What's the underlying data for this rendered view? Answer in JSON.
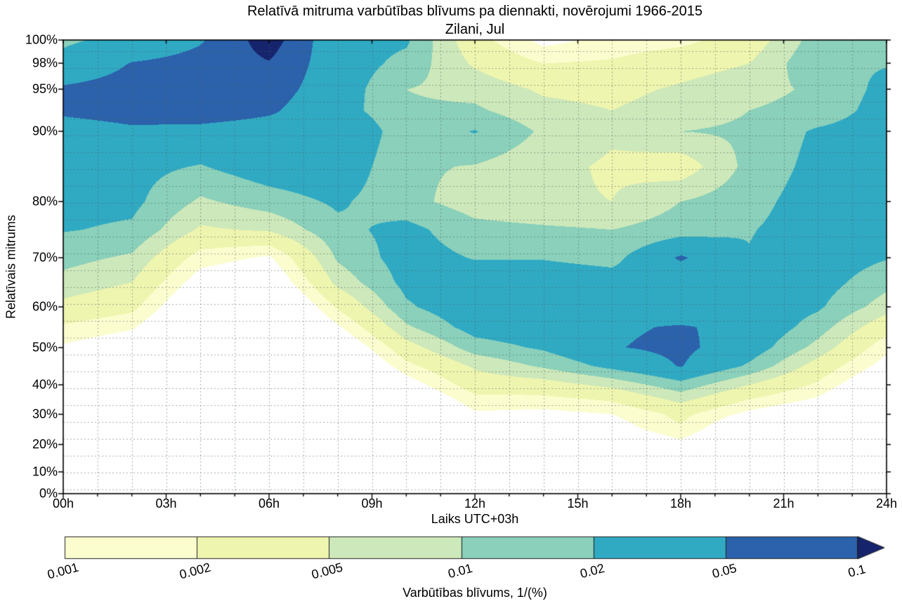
{
  "chart": {
    "title": "Relatīvā mitruma varbūtības blīvums pa diennakti, novērojumi 1966-2015",
    "subtitle": "Zilani, Jul"
  },
  "axes": {
    "x": {
      "label": "Laiks UTC+03h",
      "ticks": [
        {
          "label": "00h",
          "hour": 0
        },
        {
          "label": "03h",
          "hour": 3
        },
        {
          "label": "06h",
          "hour": 6
        },
        {
          "label": "09h",
          "hour": 9
        },
        {
          "label": "12h",
          "hour": 12
        },
        {
          "label": "15h",
          "hour": 15
        },
        {
          "label": "18h",
          "hour": 18
        },
        {
          "label": "21h",
          "hour": 21
        },
        {
          "label": "24h",
          "hour": 24
        }
      ]
    },
    "y": {
      "label": "Relatīvais mitrums",
      "ticks": [
        {
          "label": "100%",
          "value": 100,
          "f": 0.0
        },
        {
          "label": "98%",
          "value": 98,
          "f": 0.0511
        },
        {
          "label": "95%",
          "value": 95,
          "f": 0.1084
        },
        {
          "label": "90%",
          "value": 90,
          "f": 0.2012
        },
        {
          "label": "80%",
          "value": 80,
          "f": 0.356
        },
        {
          "label": "70%",
          "value": 70,
          "f": 0.4799
        },
        {
          "label": "60%",
          "value": 60,
          "f": 0.5882
        },
        {
          "label": "50%",
          "value": 50,
          "f": 0.678
        },
        {
          "label": "40%",
          "value": 40,
          "f": 0.7601
        },
        {
          "label": "30%",
          "value": 30,
          "f": 0.8251
        },
        {
          "label": "20%",
          "value": 20,
          "f": 0.8916
        },
        {
          "label": "10%",
          "value": 10,
          "f": 0.952
        },
        {
          "label": "0%",
          "value": 0,
          "f": 1.0
        }
      ]
    }
  },
  "colorbar": {
    "label": "Varbūtības blīvums, 1/(%)",
    "tick_labels": [
      "0.001",
      "0.002",
      "0.005",
      "0.01",
      "0.02",
      "0.05",
      "0.1"
    ],
    "band_colors": [
      "#fcfdcf",
      "#eef5ae",
      "#cde8ba",
      "#8ad0ba",
      "#30aac3",
      "#2b62ab"
    ],
    "arrow_color": "#16246d"
  },
  "chart_data": {
    "type": "heatmap",
    "subtype": "filled-contour",
    "title": "Relatīvā mitruma varbūtības blīvums pa diennakti, novērojumi 1966-2015",
    "subtitle": "Zilani, Jul",
    "xlabel": "Laiks UTC+03h",
    "ylabel": "Relatīvais mitrums",
    "xlim": [
      0,
      24
    ],
    "ylim": [
      0,
      100
    ],
    "grid": true,
    "contour_levels": [
      0.001,
      0.002,
      0.005,
      0.01,
      0.02,
      0.05,
      0.1
    ],
    "band_colors": [
      "#ffffff",
      "#fcfdcf",
      "#eef5ae",
      "#cde8ba",
      "#8ad0ba",
      "#30aac3",
      "#2b62ab",
      "#16246d"
    ],
    "hours": [
      0,
      2,
      4,
      6,
      8,
      10,
      12,
      14,
      16,
      18,
      20,
      22,
      24
    ],
    "humidity_levels": [
      100,
      98,
      95,
      92.5,
      90,
      85,
      80,
      75,
      70,
      65,
      60,
      55,
      50,
      45,
      40,
      35,
      30,
      25,
      20,
      10,
      0
    ],
    "log10_density": [
      [
        -1.75,
        -1.6,
        -1.33,
        -0.85,
        -1.55,
        -1.65,
        -2.55,
        -3.1,
        -2.9,
        -2.8,
        -2.5,
        -1.85,
        -1.78
      ],
      [
        -1.6,
        -1.28,
        -1.18,
        -1.02,
        -1.5,
        -1.8,
        -2.35,
        -2.7,
        -2.65,
        -2.45,
        -2.3,
        -1.75,
        -1.72
      ],
      [
        -1.24,
        -1.15,
        -1.12,
        -1.15,
        -1.5,
        -2.0,
        -2.1,
        -2.35,
        -2.4,
        -2.25,
        -2.1,
        -1.95,
        -1.6
      ],
      [
        -1.24,
        -1.18,
        -1.12,
        -1.25,
        -1.55,
        -1.95,
        -1.95,
        -2.2,
        -2.3,
        -2.15,
        -2.0,
        -1.9,
        -1.55
      ],
      [
        -1.45,
        -1.35,
        -1.4,
        -1.45,
        -1.32,
        -1.9,
        -1.68,
        -2.05,
        -2.25,
        -2.0,
        -1.95,
        -1.65,
        -1.52
      ],
      [
        -1.55,
        -1.6,
        -1.72,
        -1.5,
        -1.45,
        -1.95,
        -2.02,
        -2.2,
        -2.35,
        -2.5,
        -1.9,
        -1.6,
        -1.5
      ],
      [
        -1.6,
        -1.62,
        -2.05,
        -1.85,
        -1.65,
        -1.9,
        -2.15,
        -2.25,
        -2.3,
        -2.0,
        -1.8,
        -1.55,
        -1.52
      ],
      [
        -1.68,
        -1.75,
        -2.35,
        -2.25,
        -1.78,
        -1.6,
        -1.9,
        -1.95,
        -2.0,
        -1.85,
        -1.72,
        -1.55,
        -1.55
      ],
      [
        -1.9,
        -2.05,
        -2.85,
        -3.05,
        -1.95,
        -1.55,
        -1.72,
        -1.72,
        -1.8,
        -1.25,
        -1.68,
        -1.5,
        -1.68
      ],
      [
        -2.1,
        -2.3,
        -3.2,
        -3.4,
        -2.2,
        -1.6,
        -1.5,
        -1.5,
        -1.55,
        -1.6,
        -1.5,
        -1.55,
        -1.9
      ],
      [
        -2.4,
        -2.6,
        -3.55,
        -3.8,
        -2.65,
        -1.75,
        -1.42,
        -1.38,
        -1.42,
        -1.55,
        -1.45,
        -1.65,
        -2.15
      ],
      [
        -2.75,
        -2.95,
        -3.8,
        -4.05,
        -3.05,
        -2.05,
        -1.55,
        -1.45,
        -1.35,
        -1.27,
        -1.4,
        -1.85,
        -2.55
      ],
      [
        -3.05,
        -3.3,
        -4.0,
        -4.25,
        -3.45,
        -2.45,
        -1.85,
        -1.65,
        -1.32,
        -1.22,
        -1.5,
        -2.1,
        -2.9
      ],
      [
        -3.4,
        -3.6,
        -4.2,
        -4.45,
        -3.75,
        -2.8,
        -2.25,
        -1.95,
        -1.6,
        -1.28,
        -1.75,
        -2.45,
        -3.15
      ],
      [
        -3.7,
        -3.85,
        -4.4,
        -4.6,
        -4.0,
        -3.2,
        -2.5,
        -2.45,
        -2.2,
        -1.8,
        -2.3,
        -2.75,
        -3.5
      ],
      [
        -3.9,
        -4.05,
        -4.55,
        -4.75,
        -4.2,
        -3.5,
        -2.8,
        -2.8,
        -2.65,
        -2.2,
        -2.7,
        -3.05,
        -3.8
      ],
      [
        -4.1,
        -4.25,
        -4.7,
        -4.85,
        -4.4,
        -3.8,
        -3.05,
        -3.1,
        -3.0,
        -2.6,
        -3.1,
        -3.4,
        -4.1
      ],
      [
        -4.3,
        -4.45,
        -4.8,
        -4.95,
        -4.55,
        -4.05,
        -3.4,
        -3.15,
        -3.2,
        -2.75,
        -3.5,
        -3.7,
        -4.35
      ],
      [
        -4.5,
        -4.6,
        -4.9,
        -5.05,
        -4.7,
        -4.25,
        -3.7,
        -3.55,
        -3.6,
        -3.1,
        -3.9,
        -4.0,
        -4.55
      ],
      [
        -4.8,
        -4.9,
        -5.1,
        -5.25,
        -4.95,
        -4.6,
        -4.2,
        -4.4,
        -4.35,
        -3.9,
        -4.4,
        -4.5,
        -4.85
      ],
      [
        -5.0,
        -5.1,
        -5.3,
        -5.45,
        -5.15,
        -4.9,
        -4.6,
        -4.8,
        -4.75,
        -4.5,
        -4.8,
        -4.9,
        -5.1
      ]
    ],
    "colorbar_label": "Varbūtības blīvums, 1/(%)",
    "legend_position": "bottom"
  },
  "style": {
    "gridline_color": "rgba(75,88,94,0.5)",
    "border_color": "#000000",
    "background": "#ffffff"
  }
}
